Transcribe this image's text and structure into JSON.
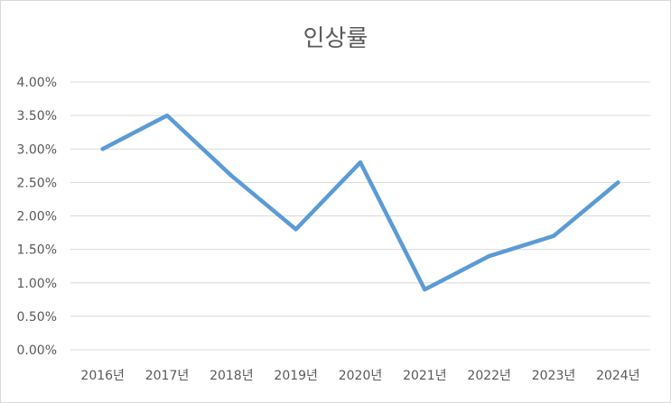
{
  "chart_data": {
    "type": "line",
    "title": "인상률",
    "xlabel": "",
    "ylabel": "",
    "categories": [
      "2016년",
      "2017년",
      "2018년",
      "2019년",
      "2020년",
      "2021년",
      "2022년",
      "2023년",
      "2024년"
    ],
    "series": [
      {
        "values": [
          3.0,
          3.5,
          2.6,
          1.8,
          2.8,
          0.9,
          1.4,
          1.7,
          2.5
        ],
        "color": "#5b9bd5"
      }
    ],
    "ylim": [
      0,
      4
    ],
    "yticks": [
      "0.00%",
      "0.50%",
      "1.00%",
      "1.50%",
      "2.00%",
      "2.50%",
      "3.00%",
      "3.50%",
      "4.00%"
    ],
    "grid": true,
    "legend": "none"
  },
  "colors": {
    "gridline": "#d9d9d9",
    "text": "#595959",
    "line": "#5b9bd5"
  }
}
